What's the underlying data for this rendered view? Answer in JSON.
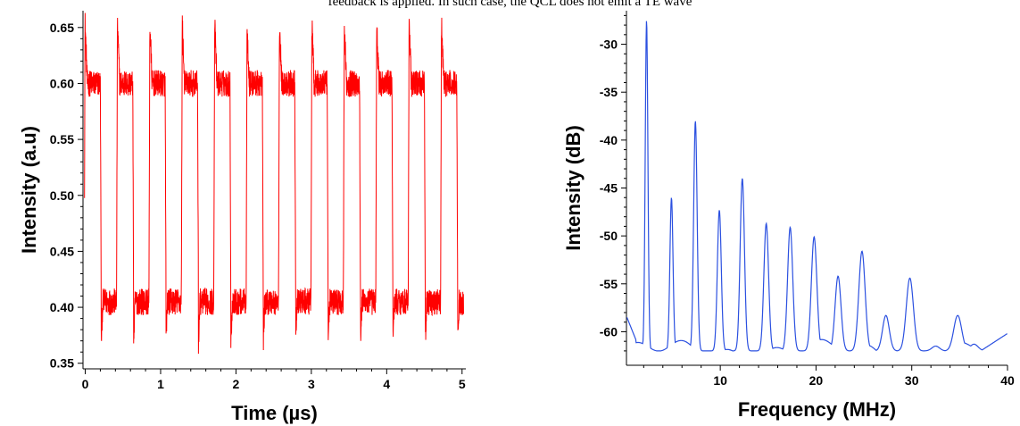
{
  "caption": "feedback is applied. In such case, the QCL does not emit a TE wave",
  "colors": {
    "left_trace": "#ff0000",
    "right_trace": "#2b50e0",
    "axis": "#000000"
  },
  "chart_data": [
    {
      "type": "line",
      "name": "time-trace",
      "xlabel": "Time (µs)",
      "ylabel": "Intensity (a.u)",
      "xlim": [
        -0.03,
        5.05
      ],
      "ylim": [
        0.345,
        0.665
      ],
      "xticks": [
        0,
        1,
        2,
        3,
        4,
        5
      ],
      "xtick_labels": [
        "0",
        "1",
        "2",
        "3",
        "4",
        "5"
      ],
      "yticks": [
        0.35,
        0.4,
        0.45,
        0.5,
        0.55,
        0.6,
        0.65
      ],
      "ytick_labels": [
        "0.35",
        "0.40",
        "0.45",
        "0.50",
        "0.55",
        "0.60",
        "0.65"
      ],
      "signal": {
        "shape": "square-wave",
        "period_us": 0.43,
        "high_level": 0.6,
        "low_level": 0.405,
        "overshoot_peak": 0.655,
        "undershoot_min": 0.37,
        "noise_amplitude": 0.012
      },
      "grid": false,
      "legend": "none"
    },
    {
      "type": "line",
      "name": "rf-spectrum",
      "xlabel": "Frequency (MHz)",
      "ylabel": "Intensity (dB)",
      "xlim": [
        0.2,
        40
      ],
      "ylim": [
        -63.5,
        -26.5
      ],
      "xticks": [
        10,
        20,
        30,
        40
      ],
      "xtick_labels": [
        "10",
        "20",
        "30",
        "40"
      ],
      "yticks": [
        -30,
        -35,
        -40,
        -45,
        -50,
        -55,
        -60
      ],
      "ytick_labels": [
        "-30",
        "-35",
        "-40",
        "-45",
        "-50",
        "-55",
        "-60"
      ],
      "baseline_db": -62,
      "peaks": [
        {
          "f": 2.3,
          "db": -27.5
        },
        {
          "f": 4.9,
          "db": -46.0
        },
        {
          "f": 7.4,
          "db": -38.0
        },
        {
          "f": 9.9,
          "db": -47.3
        },
        {
          "f": 12.3,
          "db": -44.0
        },
        {
          "f": 14.8,
          "db": -48.7
        },
        {
          "f": 17.3,
          "db": -49.1
        },
        {
          "f": 19.8,
          "db": -50.1
        },
        {
          "f": 22.3,
          "db": -54.2
        },
        {
          "f": 24.8,
          "db": -51.6
        },
        {
          "f": 27.3,
          "db": -58.3
        },
        {
          "f": 29.8,
          "db": -54.4
        },
        {
          "f": 32.5,
          "db": -61.5
        },
        {
          "f": 34.8,
          "db": -58.3
        },
        {
          "f": 36.5,
          "db": -61.3
        }
      ],
      "grid": false,
      "legend": "none"
    }
  ]
}
